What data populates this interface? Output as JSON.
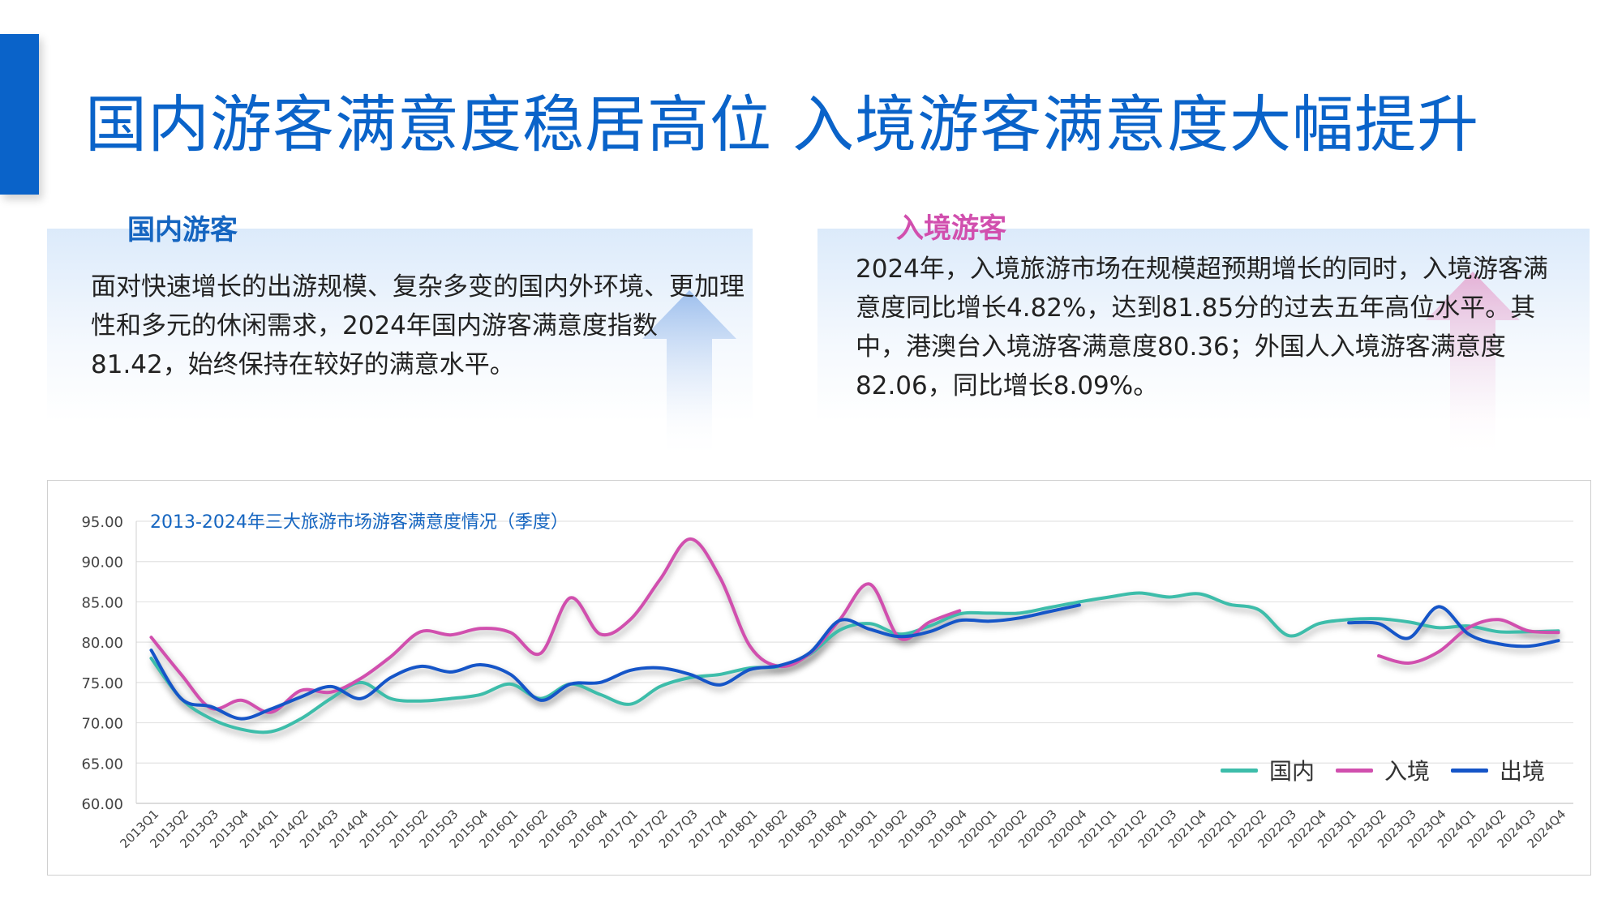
{
  "page": {
    "title": "国内游客满意度稳居高位 入境游客满意度大幅提升"
  },
  "cards": {
    "domestic": {
      "heading": "国内游客",
      "text": "面对快速增长的出游规模、复杂多变的国内外环境、更加理性和多元的休闲需求，2024年国内游客满意度指数81.42，始终保持在较好的满意水平。"
    },
    "inbound": {
      "heading": "入境游客",
      "text": "2024年，入境旅游市场在规模超预期增长的同时，入境游客满意度同比增长4.82%，达到81.85分的过去五年高位水平。其中，港澳台入境游客满意度80.36；外国人入境游客满意度82.06，同比增长8.09%。"
    }
  },
  "colors": {
    "accent": "#0a63c9",
    "domestic": "#3dbdaa",
    "inbound": "#d14fae",
    "outbound": "#1555c8"
  },
  "chart_data": {
    "type": "line",
    "title": "2013-2024年三大旅游市场游客满意度情况（季度）",
    "ylim": [
      60,
      95
    ],
    "yticks": [
      "95.00",
      "90.00",
      "85.00",
      "80.00",
      "75.00",
      "70.00",
      "65.00",
      "60.00"
    ],
    "grid": true,
    "legend_position": "bottom-right",
    "categories": [
      "2013Q1",
      "2013Q2",
      "2013Q3",
      "2013Q4",
      "2014Q1",
      "2014Q2",
      "2014Q3",
      "2014Q4",
      "2015Q1",
      "2015Q2",
      "2015Q3",
      "2015Q4",
      "2016Q1",
      "2016Q2",
      "2016Q3",
      "2016Q4",
      "2017Q1",
      "2017Q2",
      "2017Q3",
      "2017Q4",
      "2018Q1",
      "2018Q2",
      "2018Q3",
      "2018Q4",
      "2019Q1",
      "2019Q2",
      "2019Q3",
      "2019Q4",
      "2020Q1",
      "2020Q2",
      "2020Q3",
      "2020Q4",
      "2021Q1",
      "2021Q2",
      "2021Q3",
      "2021Q4",
      "2022Q1",
      "2022Q2",
      "2022Q3",
      "2022Q4",
      "2023Q1",
      "2023Q2",
      "2023Q3",
      "2023Q4",
      "2024Q1",
      "2024Q2",
      "2024Q3",
      "2024Q4"
    ],
    "series": [
      {
        "name": "国内",
        "key": "domestic",
        "values": [
          78.0,
          73.0,
          70.5,
          69.2,
          68.9,
          70.5,
          73.0,
          75.0,
          73.0,
          72.7,
          73.0,
          73.5,
          74.8,
          73.0,
          74.8,
          73.5,
          72.3,
          74.5,
          75.6,
          76.0,
          76.8,
          77.0,
          78.5,
          81.5,
          82.3,
          81.0,
          82.0,
          83.5,
          83.6,
          83.6,
          84.3,
          85.0,
          85.6,
          86.1,
          85.6,
          86.0,
          84.7,
          84.0,
          80.8,
          82.3,
          82.8,
          82.9,
          82.5,
          81.8,
          82.0,
          81.3,
          81.3,
          81.4
        ]
      },
      {
        "name": "入境",
        "key": "inbound",
        "values": [
          80.6,
          76.0,
          71.8,
          72.8,
          71.3,
          74.0,
          73.8,
          75.5,
          78.2,
          81.3,
          80.9,
          81.7,
          81.2,
          78.6,
          85.5,
          81.0,
          82.8,
          87.8,
          92.8,
          88.0,
          79.5,
          77.0,
          78.6,
          82.8,
          87.2,
          80.5,
          82.5,
          83.9,
          null,
          null,
          null,
          null,
          null,
          null,
          null,
          null,
          null,
          null,
          null,
          null,
          null,
          78.3,
          77.4,
          78.8,
          81.8,
          82.8,
          81.4,
          81.2
        ]
      },
      {
        "name": "出境",
        "key": "outbound",
        "values": [
          79.0,
          73.0,
          72.0,
          70.5,
          71.7,
          73.2,
          74.5,
          73.0,
          75.6,
          77.0,
          76.3,
          77.2,
          76.0,
          72.8,
          74.8,
          75.0,
          76.5,
          76.8,
          76.0,
          74.7,
          76.6,
          77.1,
          78.7,
          82.7,
          81.6,
          80.7,
          81.3,
          82.7,
          82.6,
          83.0,
          83.8,
          84.6,
          null,
          null,
          null,
          null,
          null,
          null,
          null,
          null,
          82.4,
          82.3,
          80.5,
          84.4,
          81.0,
          79.8,
          79.5,
          80.2
        ]
      }
    ]
  }
}
